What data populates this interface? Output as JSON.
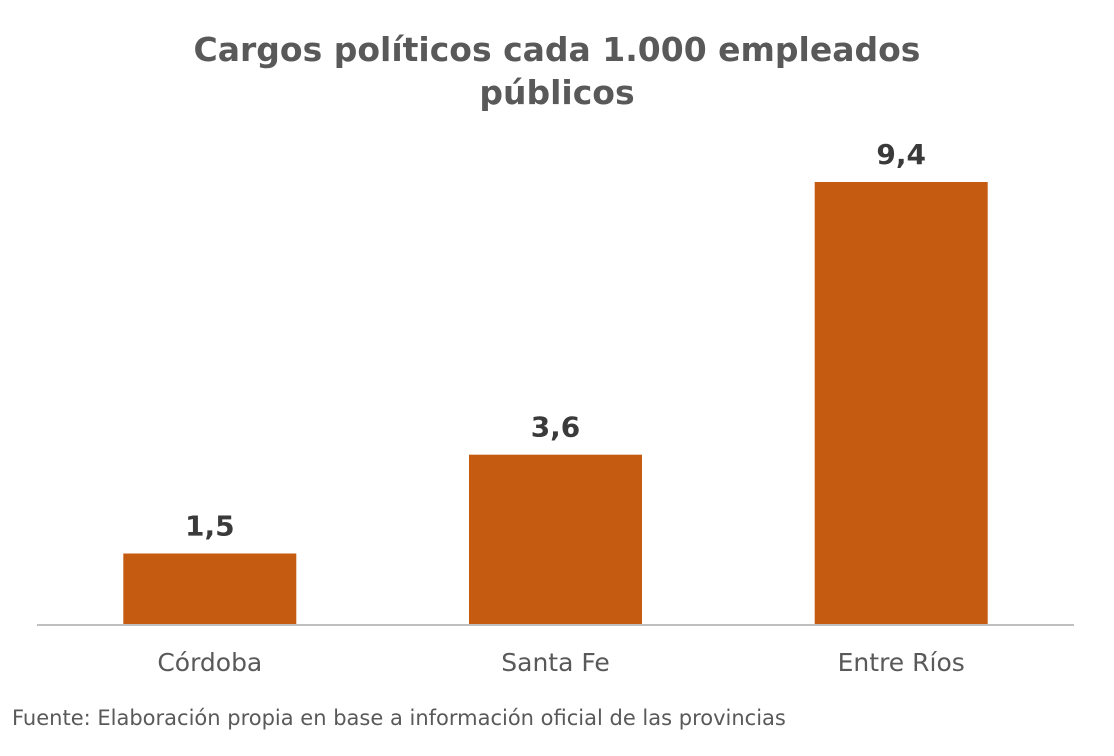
{
  "chart_data": {
    "type": "bar",
    "title_lines": [
      "Cargos políticos cada 1.000 empleados",
      "públicos"
    ],
    "categories": [
      "Córdoba",
      "Santa Fe",
      "Entre Ríos"
    ],
    "values": [
      1.5,
      3.6,
      9.4
    ],
    "value_labels": [
      "1,5",
      "3,6",
      "9,4"
    ],
    "xlabel": "",
    "ylabel": "",
    "ylim": [
      0,
      9.4
    ],
    "grid": false,
    "legend": "none",
    "colors": {
      "bar": "#C55A11",
      "axis": "#BFBFBF"
    }
  },
  "source": "Fuente: Elaboración propia en base a información oficial de las provincias"
}
